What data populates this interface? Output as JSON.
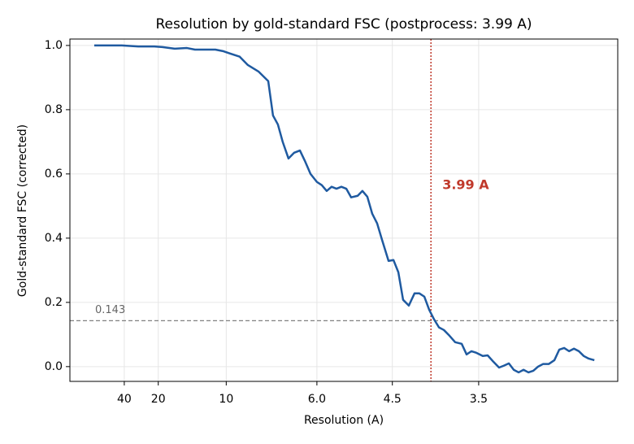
{
  "chart_data": {
    "type": "line",
    "title": "Resolution by gold-standard FSC (postprocess: 3.99 A)",
    "xlabel": "Resolution (A)",
    "ylabel": "Gold-standard FSC (corrected)",
    "x": [
      0.0029,
      0.0112,
      0.0232,
      0.0352,
      0.0471,
      0.0531,
      0.0621,
      0.0711,
      0.077,
      0.086,
      0.092,
      0.098,
      0.1028,
      0.1099,
      0.1159,
      0.1237,
      0.1309,
      0.1344,
      0.138,
      0.1416,
      0.1458,
      0.15,
      0.1542,
      0.1578,
      0.162,
      0.1667,
      0.1703,
      0.1739,
      0.1775,
      0.1811,
      0.1847,
      0.1883,
      0.1919,
      0.1967,
      0.2002,
      0.2038,
      0.2074,
      0.211,
      0.2146,
      0.2194,
      0.223,
      0.2266,
      0.2301,
      0.2343,
      0.2385,
      0.2421,
      0.2457,
      0.2493,
      0.2529,
      0.2565,
      0.2601,
      0.2636,
      0.2684,
      0.2732,
      0.2768,
      0.2804,
      0.284,
      0.2887,
      0.2923,
      0.2959,
      0.3007,
      0.3043,
      0.3079,
      0.3115,
      0.3151,
      0.3187,
      0.3223,
      0.3259,
      0.3294,
      0.333,
      0.3372,
      0.3414,
      0.345,
      0.3486,
      0.3522,
      0.3558,
      0.3594,
      0.363,
      0.3666,
      0.3708
    ],
    "series": [
      {
        "name": "FSC",
        "color": "#1f5aa0",
        "values": [
          1.0,
          1.0,
          1.0,
          0.997,
          0.997,
          0.995,
          0.99,
          0.992,
          0.987,
          0.987,
          0.987,
          0.982,
          0.975,
          0.965,
          0.939,
          0.919,
          0.889,
          0.782,
          0.754,
          0.699,
          0.648,
          0.666,
          0.673,
          0.641,
          0.6,
          0.575,
          0.565,
          0.547,
          0.56,
          0.554,
          0.56,
          0.554,
          0.527,
          0.532,
          0.547,
          0.529,
          0.476,
          0.446,
          0.395,
          0.329,
          0.332,
          0.294,
          0.208,
          0.19,
          0.228,
          0.228,
          0.218,
          0.177,
          0.147,
          0.122,
          0.114,
          0.099,
          0.076,
          0.071,
          0.038,
          0.048,
          0.043,
          0.033,
          0.035,
          0.018,
          -0.003,
          0.003,
          0.01,
          -0.01,
          -0.018,
          -0.01,
          -0.018,
          -0.013,
          0.0,
          0.008,
          0.008,
          0.02,
          0.053,
          0.058,
          0.048,
          0.056,
          0.048,
          0.033,
          0.025,
          0.02
        ]
      }
    ],
    "xlim": [
      -0.015,
      0.388
    ],
    "ylim": [
      -0.046,
      1.02
    ],
    "xticks": [
      {
        "value": 0.025,
        "label": "40"
      },
      {
        "value": 0.05,
        "label": "20"
      },
      {
        "value": 0.1,
        "label": "10"
      },
      {
        "value": 0.1667,
        "label": "6.0"
      },
      {
        "value": 0.2222,
        "label": "4.5"
      },
      {
        "value": 0.2857,
        "label": "3.5"
      }
    ],
    "yticks": [
      {
        "value": 0,
        "label": "0.0"
      },
      0.2,
      0.4,
      0.6,
      0.8,
      {
        "value": 1,
        "label": "1.0"
      }
    ],
    "grid": true,
    "hline": 0.143,
    "hline_color": "#808080",
    "vline": 0.2506,
    "vline_color": "#c0392b",
    "vline_label": "3.99 A"
  }
}
